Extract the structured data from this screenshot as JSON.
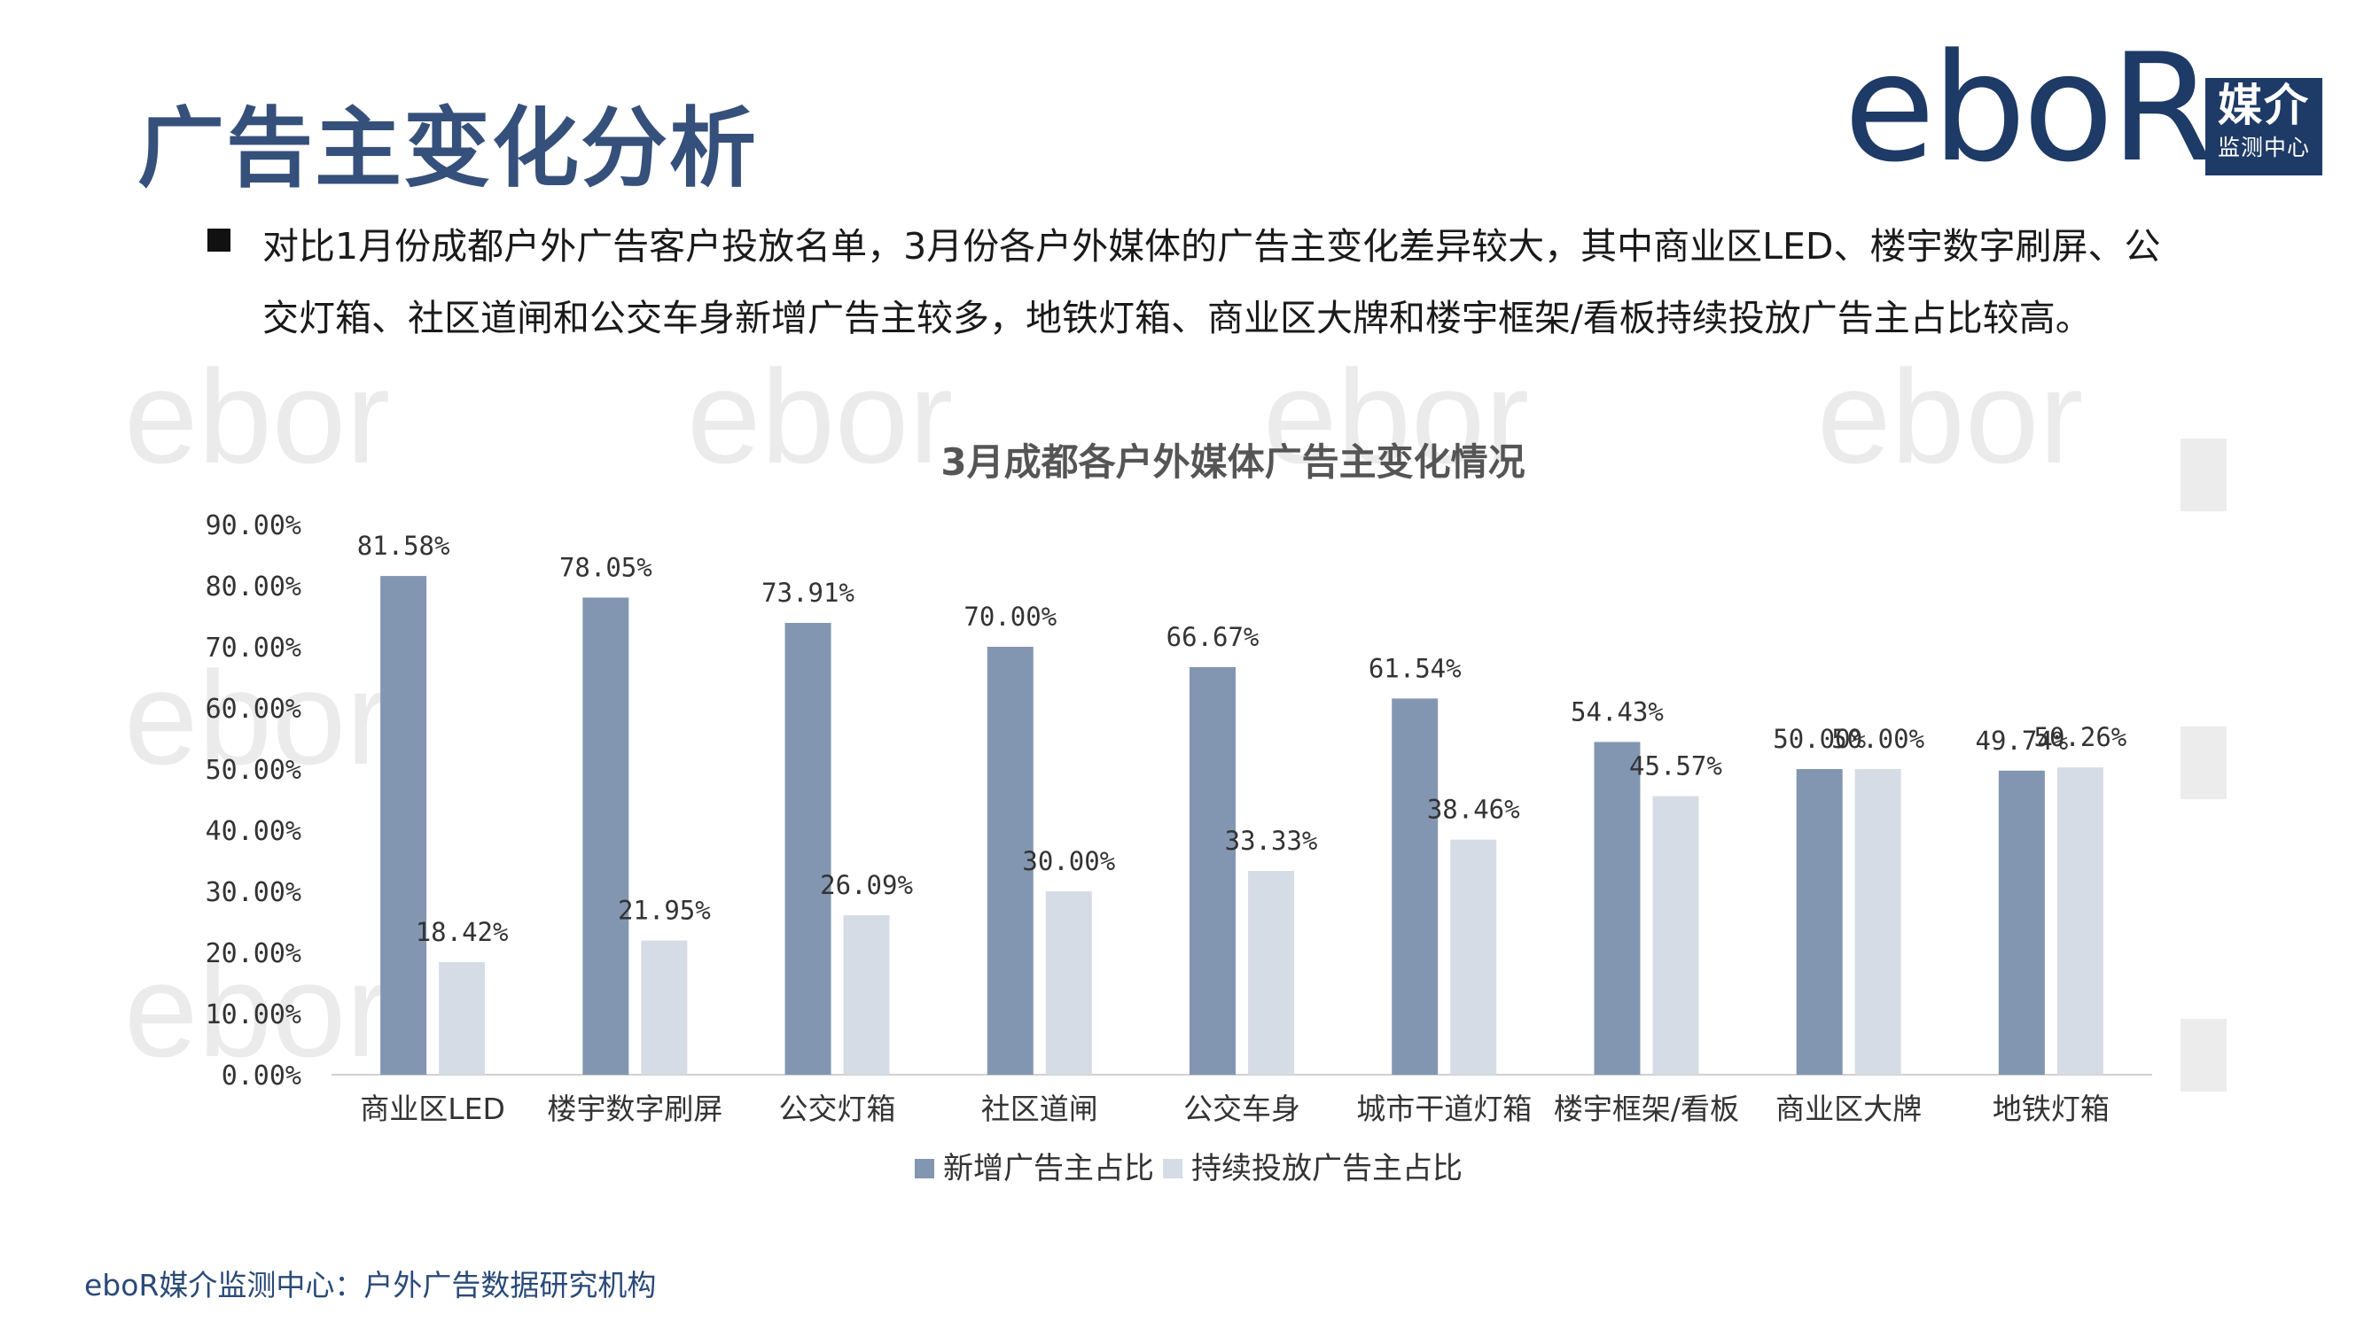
{
  "page": {
    "title": "广告主变化分析",
    "bullet": "对比1月份成都户外广告客户投放名单，3月份各户外媒体的广告主变化差异较大，其中商业区LED、楼宇数字刷屏、公交灯箱、社区道闸和公交车身新增广告主较多，地铁灯箱、商业区大牌和楼宇框架/看板持续投放广告主占比较高。",
    "footer": "eboR媒介监测中心：户外广告数据研究机构"
  },
  "logo": {
    "wordmark": "eboR",
    "box_main": "媒介",
    "box_sub": "监测中心"
  },
  "watermark": {
    "text": "ebor"
  },
  "colors": {
    "title": "#35507a",
    "series_new": "#8396b1",
    "series_continue": "#d6dce6",
    "axis_text": "#333333"
  },
  "chart_data": {
    "type": "bar",
    "title": "3月成都各户外媒体广告主变化情况",
    "categories": [
      "商业区LED",
      "楼宇数字刷屏",
      "公交灯箱",
      "社区道闸",
      "公交车身",
      "城市干道灯箱",
      "楼宇框架/看板",
      "商业区大牌",
      "地铁灯箱"
    ],
    "series": [
      {
        "name": "新增广告主占比",
        "values": [
          81.58,
          78.05,
          73.91,
          70.0,
          66.67,
          61.54,
          54.43,
          50.0,
          49.74
        ],
        "labels": [
          "81.58%",
          "78.05%",
          "73.91%",
          "70.00%",
          "66.67%",
          "61.54%",
          "54.43%",
          "50.00%",
          "49.74%"
        ]
      },
      {
        "name": "持续投放广告主占比",
        "values": [
          18.42,
          21.95,
          26.09,
          30.0,
          33.33,
          38.46,
          45.57,
          50.0,
          50.26
        ],
        "labels": [
          "18.42%",
          "21.95%",
          "26.09%",
          "30.00%",
          "33.33%",
          "38.46%",
          "45.57%",
          "50.00%",
          "50.26%"
        ]
      }
    ],
    "y_ticks": [
      "0.00%",
      "10.00%",
      "20.00%",
      "30.00%",
      "40.00%",
      "50.00%",
      "60.00%",
      "70.00%",
      "80.00%",
      "90.00%"
    ],
    "ylim": [
      0,
      90
    ],
    "grid": false,
    "legend_position": "bottom"
  }
}
